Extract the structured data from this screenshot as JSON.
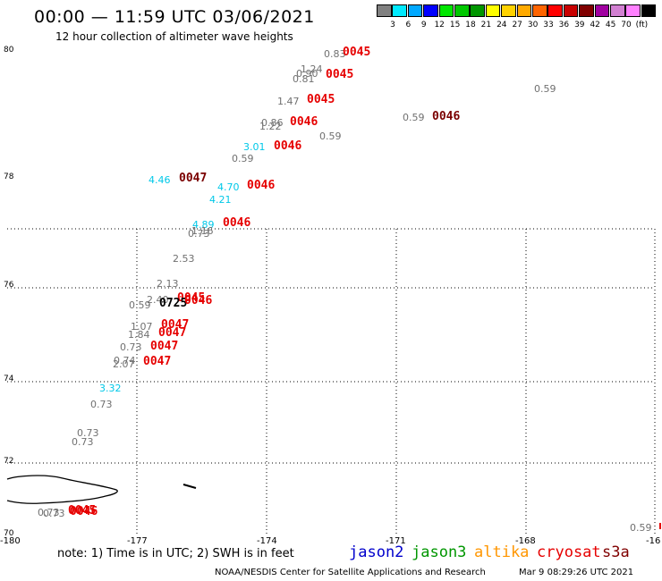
{
  "header": {
    "title": "00:00 — 11:59 UTC 03/06/2021",
    "subtitle": "12 hour collection of altimeter wave heights"
  },
  "scale": {
    "colors": [
      "#808080",
      "#00eaff",
      "#00a8ff",
      "#0000ff",
      "#00e600",
      "#00c800",
      "#009600",
      "#ffff00",
      "#ffd200",
      "#ffaa00",
      "#ff6400",
      "#ff0000",
      "#c80000",
      "#800000",
      "#a000a0",
      "#d280d2",
      "#ff80ff",
      "#000000"
    ],
    "labels": [
      "3",
      "6",
      "9",
      "12",
      "15",
      "18",
      "21",
      "24",
      "27",
      "30",
      "33",
      "36",
      "39",
      "42",
      "45",
      "70",
      "(ft)"
    ]
  },
  "axes": {
    "y_labels": [
      "80",
      "78",
      "76",
      "74",
      "72",
      "70"
    ],
    "x_labels": [
      "-180",
      "-177",
      "-174",
      "-171",
      "-168",
      "-16"
    ]
  },
  "observations": [
    {
      "text": "0.83",
      "color": "grey"
    },
    {
      "text": "0045",
      "color": "red"
    },
    {
      "text": "1.24",
      "color": "grey"
    },
    {
      "text": "0.90",
      "color": "grey"
    },
    {
      "text": "0.81",
      "color": "grey"
    },
    {
      "text": "0045",
      "color": "red"
    },
    {
      "text": "0.59",
      "color": "grey"
    },
    {
      "text": "1.47",
      "color": "grey"
    },
    {
      "text": "0045",
      "color": "red"
    },
    {
      "text": "0.59",
      "color": "grey"
    },
    {
      "text": "0046",
      "color": "dred"
    },
    {
      "text": "0.86",
      "color": "grey"
    },
    {
      "text": "1.22",
      "color": "grey"
    },
    {
      "text": "0046",
      "color": "red"
    },
    {
      "text": "0.59",
      "color": "grey"
    },
    {
      "text": "3.01",
      "color": "cyan"
    },
    {
      "text": "0046",
      "color": "red"
    },
    {
      "text": "0.59",
      "color": "grey"
    },
    {
      "text": "4.46",
      "color": "cyan"
    },
    {
      "text": "0047",
      "color": "dred"
    },
    {
      "text": "4.70",
      "color": "cyan"
    },
    {
      "text": "0046",
      "color": "red"
    },
    {
      "text": "4.21",
      "color": "cyan"
    },
    {
      "text": "4.89",
      "color": "cyan"
    },
    {
      "text": "0046",
      "color": "red"
    },
    {
      "text": "1.16",
      "color": "grey"
    },
    {
      "text": "0.73",
      "color": "grey"
    },
    {
      "text": "2.53",
      "color": "grey"
    },
    {
      "text": "2.13",
      "color": "grey"
    },
    {
      "text": "2.40",
      "color": "grey"
    },
    {
      "text": "0045",
      "color": "red"
    },
    {
      "text": "0.59",
      "color": "grey"
    },
    {
      "text": "0725",
      "color": "blk"
    },
    {
      "text": "0046",
      "color": "red"
    },
    {
      "text": "1.07",
      "color": "grey"
    },
    {
      "text": "0047",
      "color": "red"
    },
    {
      "text": "1.84",
      "color": "grey"
    },
    {
      "text": "0047",
      "color": "red"
    },
    {
      "text": "0.73",
      "color": "grey"
    },
    {
      "text": "0047",
      "color": "red"
    },
    {
      "text": "0.74",
      "color": "grey"
    },
    {
      "text": "2.07",
      "color": "grey"
    },
    {
      "text": "0047",
      "color": "red"
    },
    {
      "text": "3.32",
      "color": "cyan"
    },
    {
      "text": "0.73",
      "color": "grey"
    },
    {
      "text": "0.73",
      "color": "grey"
    },
    {
      "text": "0.73",
      "color": "grey"
    },
    {
      "text": "0.73",
      "color": "grey"
    },
    {
      "text": "0.73",
      "color": "grey"
    },
    {
      "text": "0045",
      "color": "red"
    },
    {
      "text": "0046",
      "color": "red"
    },
    {
      "text": "0.59",
      "color": "grey"
    }
  ],
  "footer": {
    "note": "note: 1) Time is in UTC; 2) SWH is in feet",
    "satellites": [
      {
        "name": "jason2",
        "color": "#0000cc"
      },
      {
        "name": "jason3",
        "color": "#009600"
      },
      {
        "name": "altika",
        "color": "#ff9600"
      },
      {
        "name": "cryosat",
        "color": "#e60000"
      },
      {
        "name": "s3a",
        "color": "#800000"
      }
    ],
    "credit": "NOAA/NESDIS Center for Satellite Applications and Research",
    "timestamp": "Mar  9 08:29:26 UTC 2021"
  }
}
